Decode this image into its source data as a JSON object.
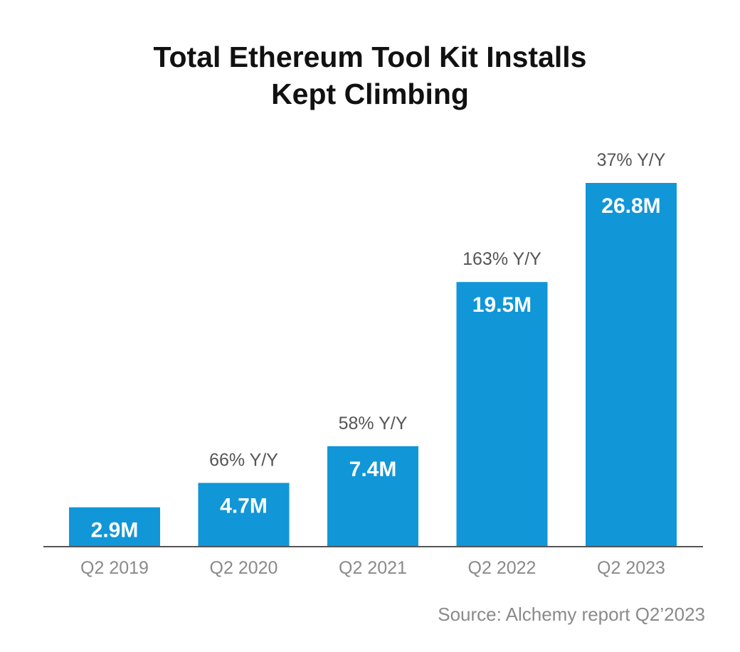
{
  "title_line1": "Total Ethereum Tool Kit Installs",
  "title_line2": "Kept Climbing",
  "source": "Source: Alchemy report Q2’2023",
  "colors": {
    "bar": "#1196d8",
    "bar_label": "#ffffff",
    "growth_label": "#555555",
    "tick_label": "#8a8a8a",
    "axis": "#555555"
  },
  "chart_data": {
    "type": "bar",
    "title": "Total Ethereum Tool Kit Installs Kept Climbing",
    "xlabel": "",
    "ylabel": "",
    "categories": [
      "Q2 2019",
      "Q2 2020",
      "Q2 2021",
      "Q2 2022",
      "Q2 2023"
    ],
    "values": [
      2.9,
      4.7,
      7.4,
      19.5,
      26.8
    ],
    "value_labels": [
      "2.9M",
      "4.7M",
      "7.4M",
      "19.5M",
      "26.8M"
    ],
    "growth_labels": [
      "",
      "66% Y/Y",
      "58% Y/Y",
      "163% Y/Y",
      "37% Y/Y"
    ],
    "ylim": [
      0,
      26.8
    ],
    "grid": false,
    "legend": "none"
  }
}
